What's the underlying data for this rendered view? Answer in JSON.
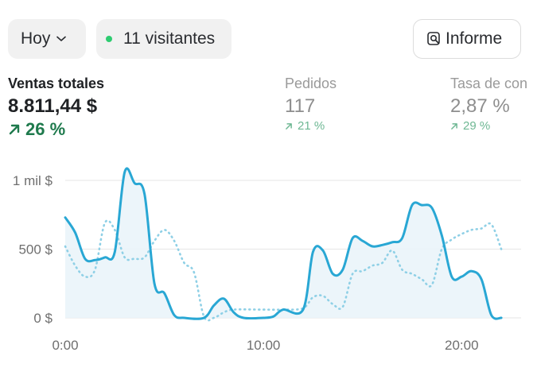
{
  "toolbar": {
    "period_label": "Hoy",
    "visitors_label": "11 visitantes",
    "report_label": "Informe"
  },
  "metrics": [
    {
      "title": "Ventas totales",
      "value": "8.811,44 $",
      "change": "26 %"
    },
    {
      "title": "Pedidos",
      "value": "117",
      "change": "21 %"
    },
    {
      "title": "Tasa de con",
      "value": "2,87 %",
      "change": "29 %"
    }
  ],
  "colors": {
    "current": "#29a7d4",
    "previous": "#8fd0e6",
    "positive": "#1f7a4d",
    "live_dot": "#2ecc71"
  },
  "chart_data": {
    "type": "line",
    "ylim": [
      0,
      1000
    ],
    "xlim": [
      0,
      23
    ],
    "y_ticks": [
      {
        "value": 0,
        "label": "0 $"
      },
      {
        "value": 500,
        "label": "500 $"
      },
      {
        "value": 1000,
        "label": "1 mil $"
      }
    ],
    "x_ticks": [
      {
        "value": 0,
        "label": "0:00"
      },
      {
        "value": 10,
        "label": "10:00"
      },
      {
        "value": 20,
        "label": "20:00"
      }
    ],
    "grid": true,
    "series": [
      {
        "style": "solid",
        "points": [
          [
            0,
            730
          ],
          [
            0.5,
            620
          ],
          [
            1,
            430
          ],
          [
            1.5,
            420
          ],
          [
            2,
            440
          ],
          [
            2.5,
            480
          ],
          [
            3,
            1060
          ],
          [
            3.5,
            980
          ],
          [
            4,
            900
          ],
          [
            4.5,
            250
          ],
          [
            5,
            180
          ],
          [
            5.5,
            20
          ],
          [
            6,
            0
          ],
          [
            7,
            0
          ],
          [
            7.5,
            90
          ],
          [
            8,
            140
          ],
          [
            8.5,
            40
          ],
          [
            9,
            0
          ],
          [
            10,
            0
          ],
          [
            10.5,
            10
          ],
          [
            11,
            60
          ],
          [
            12,
            60
          ],
          [
            12.5,
            480
          ],
          [
            13,
            490
          ],
          [
            13.5,
            320
          ],
          [
            14,
            350
          ],
          [
            14.5,
            580
          ],
          [
            15,
            560
          ],
          [
            15.5,
            520
          ],
          [
            16,
            530
          ],
          [
            16.5,
            550
          ],
          [
            17,
            580
          ],
          [
            17.5,
            820
          ],
          [
            18,
            820
          ],
          [
            18.5,
            800
          ],
          [
            19,
            600
          ],
          [
            19.5,
            300
          ],
          [
            20,
            300
          ],
          [
            20.5,
            340
          ],
          [
            21,
            280
          ],
          [
            21.5,
            20
          ],
          [
            22,
            0
          ]
        ]
      },
      {
        "style": "dotted",
        "points": [
          [
            0,
            520
          ],
          [
            0.5,
            380
          ],
          [
            1,
            300
          ],
          [
            1.5,
            350
          ],
          [
            2,
            690
          ],
          [
            2.5,
            640
          ],
          [
            3,
            440
          ],
          [
            3.5,
            430
          ],
          [
            4,
            440
          ],
          [
            4.5,
            560
          ],
          [
            5,
            640
          ],
          [
            5.5,
            560
          ],
          [
            6,
            400
          ],
          [
            6.5,
            330
          ],
          [
            7,
            10
          ],
          [
            7.5,
            0
          ],
          [
            8,
            40
          ],
          [
            8.5,
            60
          ],
          [
            10,
            60
          ],
          [
            11,
            60
          ],
          [
            12,
            70
          ],
          [
            12.5,
            150
          ],
          [
            13,
            160
          ],
          [
            13.5,
            100
          ],
          [
            14,
            80
          ],
          [
            14.5,
            320
          ],
          [
            15,
            340
          ],
          [
            15.5,
            380
          ],
          [
            16,
            400
          ],
          [
            16.5,
            490
          ],
          [
            17,
            350
          ],
          [
            17.5,
            320
          ],
          [
            18,
            280
          ],
          [
            18.5,
            240
          ],
          [
            19,
            500
          ],
          [
            19.5,
            570
          ],
          [
            20,
            610
          ],
          [
            20.5,
            640
          ],
          [
            21,
            650
          ],
          [
            21.5,
            680
          ],
          [
            22,
            500
          ]
        ]
      }
    ]
  }
}
